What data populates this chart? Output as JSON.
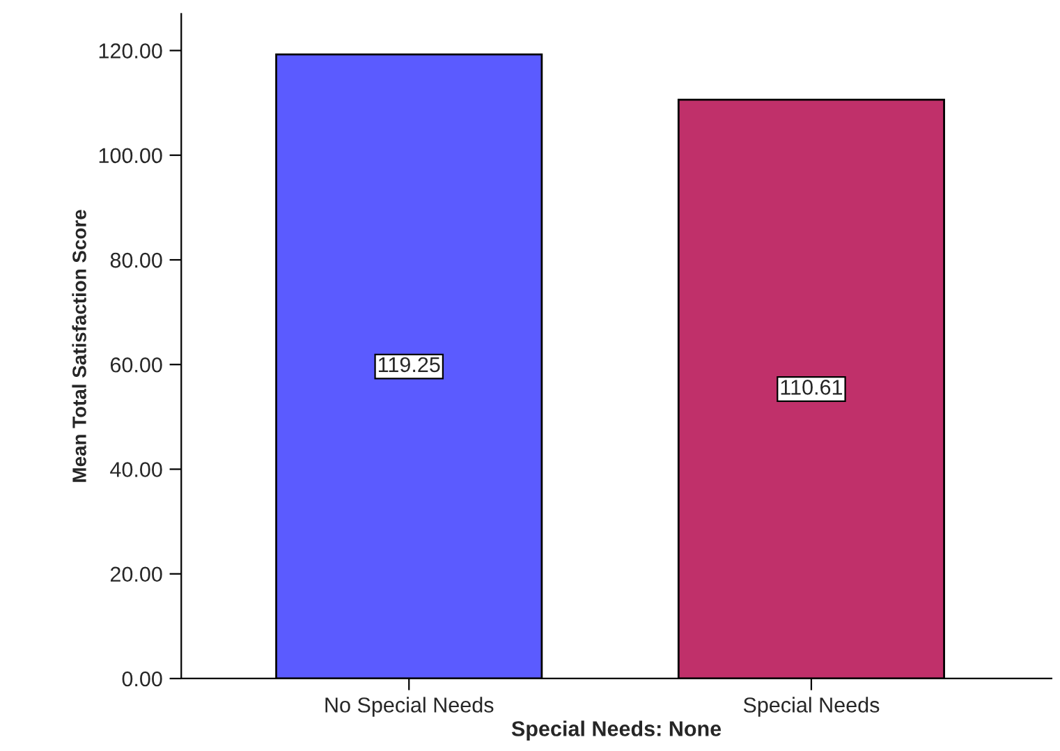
{
  "chart_data": {
    "type": "bar",
    "xlabel": "Special Needs: None",
    "ylabel": "Mean Total Satisfaction Score",
    "categories": [
      "No Special Needs",
      "Special Needs"
    ],
    "values": [
      119.25,
      110.61
    ],
    "colors": [
      "#5b5bff",
      "#c0306a"
    ],
    "data_labels": true,
    "ylim": [
      0,
      127
    ],
    "yticks": [
      {
        "value": 0,
        "label": "0.00"
      },
      {
        "value": 20,
        "label": "20.00"
      },
      {
        "value": 40,
        "label": "40.00"
      },
      {
        "value": 60,
        "label": "60.00"
      },
      {
        "value": 80,
        "label": "80.00"
      },
      {
        "value": 100,
        "label": "100.00"
      },
      {
        "value": 120,
        "label": "120.00"
      }
    ],
    "grid": false
  }
}
